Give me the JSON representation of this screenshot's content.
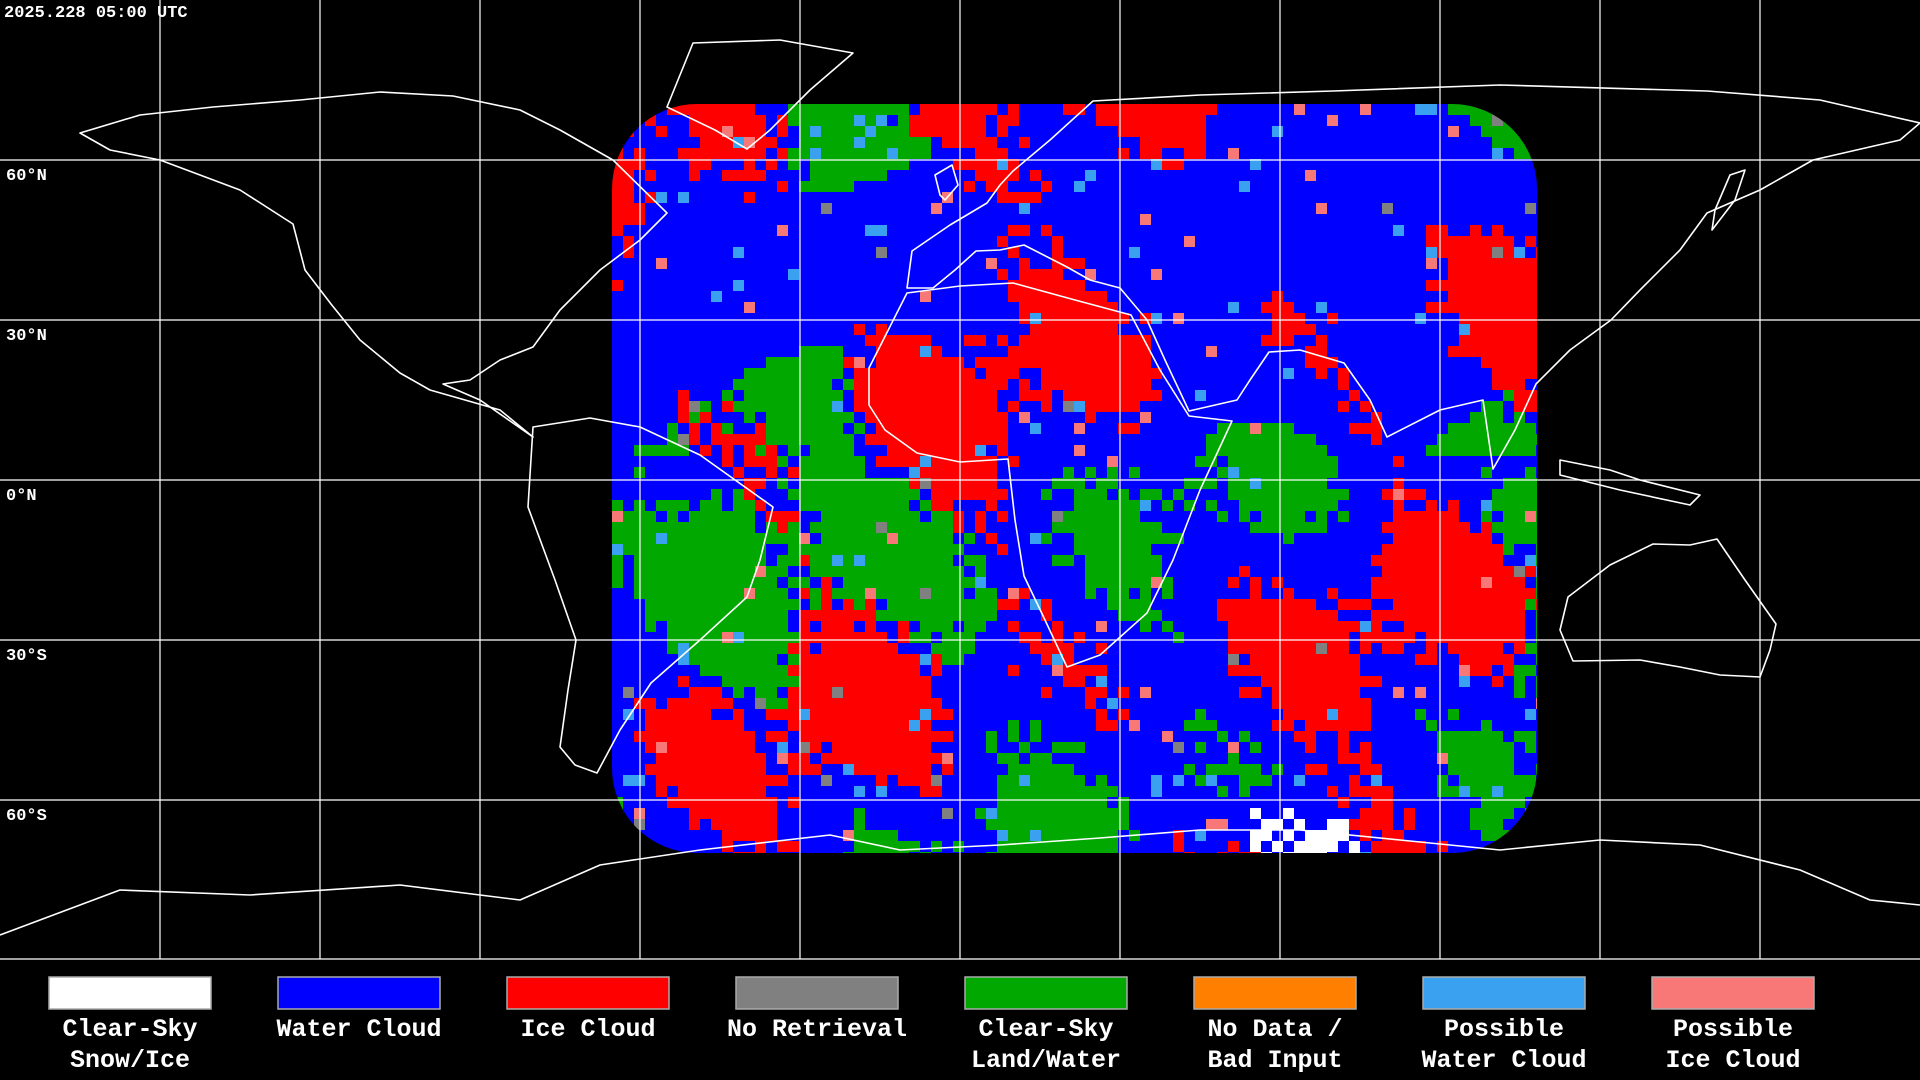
{
  "header": {
    "timestamp": "2025.228 05:00 UTC"
  },
  "map": {
    "latitude_labels": [
      "60°N",
      "30°N",
      "0°N",
      "30°S",
      "60°S"
    ]
  },
  "legend": {
    "items": [
      {
        "label": [
          "Clear-Sky",
          "Snow/Ice"
        ],
        "color": "#ffffff"
      },
      {
        "label": [
          "Water Cloud"
        ],
        "color": "#0000ff"
      },
      {
        "label": [
          "Ice Cloud"
        ],
        "color": "#ff0000"
      },
      {
        "label": [
          "No Retrieval"
        ],
        "color": "#808080"
      },
      {
        "label": [
          "Clear-Sky",
          "Land/Water"
        ],
        "color": "#00a800"
      },
      {
        "label": [
          "No Data /",
          "Bad Input"
        ],
        "color": "#ff8000"
      },
      {
        "label": [
          "Possible",
          "Water Cloud"
        ],
        "color": "#3aa0f0"
      },
      {
        "label": [
          "Possible",
          "Ice Cloud"
        ],
        "color": "#f87878"
      }
    ]
  }
}
